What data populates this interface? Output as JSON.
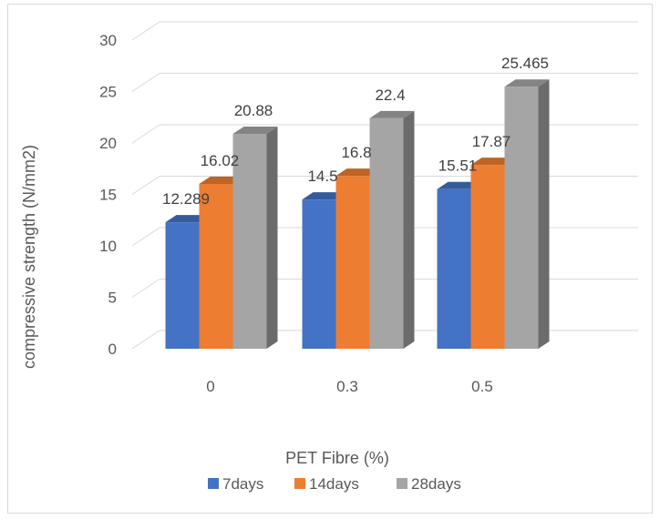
{
  "chart_data": {
    "type": "bar",
    "title": "",
    "xlabel": "PET Fibre (%)",
    "ylabel": "compressive strength (N/mm2)",
    "categories": [
      "0",
      "0.3",
      "0.5"
    ],
    "ylim": [
      0,
      30
    ],
    "yticks": [
      "0",
      "5",
      "10",
      "15",
      "20",
      "25",
      "30"
    ],
    "grid": true,
    "legend_position": "bottom",
    "series": [
      {
        "name": "7days",
        "color": "#4472C4",
        "values": [
          12.289,
          14.5,
          15.51
        ],
        "labels": [
          "12.289",
          "14.5",
          "15.51"
        ]
      },
      {
        "name": "14days",
        "color": "#ED7D31",
        "values": [
          16.02,
          16.8,
          17.87
        ],
        "labels": [
          "16.02",
          "16.8",
          "17.87"
        ]
      },
      {
        "name": "28days",
        "color": "#A5A5A5",
        "values": [
          20.88,
          22.4,
          25.465
        ],
        "labels": [
          "20.88",
          "22.4",
          "25.465"
        ]
      }
    ]
  }
}
